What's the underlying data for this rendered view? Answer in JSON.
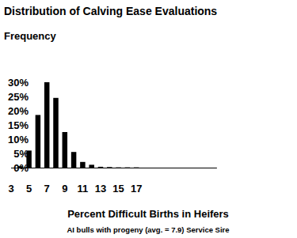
{
  "chart_data": {
    "type": "bar",
    "title": "Distribution of Calving Ease Evaluations",
    "y_label": "Frequency",
    "x_label": "Percent Difficult Births in Heifers",
    "annotations": [
      "AI bulls with progeny (avg. = 7.9) Service Sire"
    ],
    "x": [
      4,
      5,
      6,
      7,
      8,
      9,
      10,
      11,
      12,
      13,
      14,
      15,
      16,
      17
    ],
    "values": [
      0.5,
      6,
      18.5,
      30,
      24.5,
      12.5,
      5.5,
      2,
      1,
      0.3,
      0.2,
      0.1,
      0.1,
      0.1
    ],
    "color": "#000000",
    "xlim": [
      3,
      26
    ],
    "xticks": [
      3,
      5,
      7,
      9,
      11,
      13,
      15,
      17
    ],
    "ylim": [
      0,
      30
    ],
    "yticks": [
      {
        "value": 0,
        "label": "0%"
      },
      {
        "value": 5,
        "label": "5%"
      },
      {
        "value": 10,
        "label": "10%"
      },
      {
        "value": 15,
        "label": "15%"
      },
      {
        "value": 20,
        "label": "20%"
      },
      {
        "value": 25,
        "label": "25%"
      },
      {
        "value": 30,
        "label": "30%"
      }
    ],
    "grid": false
  }
}
